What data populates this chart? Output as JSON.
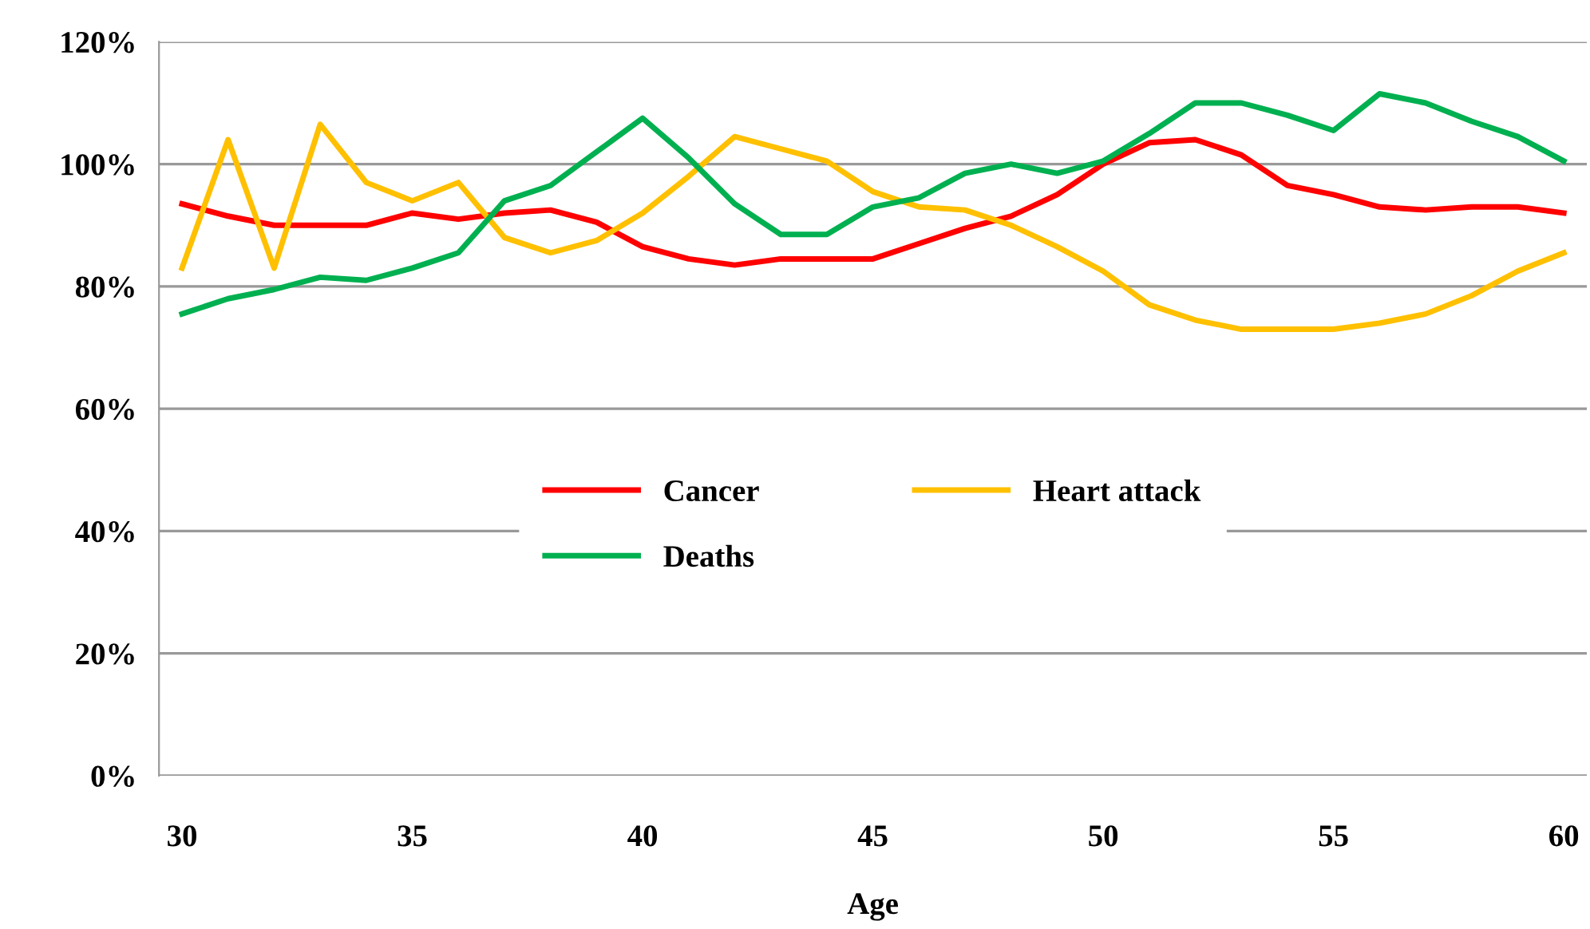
{
  "chart_data": {
    "type": "line",
    "xlabel": "Age",
    "x": [
      30,
      31,
      32,
      33,
      34,
      35,
      36,
      37,
      38,
      39,
      40,
      41,
      42,
      43,
      44,
      45,
      46,
      47,
      48,
      49,
      50,
      51,
      52,
      53,
      54,
      55,
      56,
      57,
      58,
      59,
      60
    ],
    "series": [
      {
        "name": "Cancer",
        "color": "#ff0000",
        "values": [
          93.5,
          91.5,
          90,
          90,
          90,
          92,
          91,
          92,
          92.5,
          90.5,
          86.5,
          84.5,
          83.5,
          84.5,
          84.5,
          84.5,
          87,
          89.5,
          91.5,
          95,
          100,
          103.5,
          104,
          101.5,
          96.5,
          95,
          93,
          92.5,
          93,
          93,
          92
        ]
      },
      {
        "name": "Heart attack",
        "color": "#ffc000",
        "values": [
          83,
          104,
          83,
          106.5,
          97,
          94,
          97,
          88,
          85.5,
          87.5,
          92,
          98,
          104.5,
          102.5,
          100.5,
          95.5,
          93,
          92.5,
          90,
          86.5,
          82.5,
          77,
          74.5,
          73,
          73,
          73,
          74,
          75.5,
          78.5,
          82.5,
          85.5
        ]
      },
      {
        "name": "Deaths",
        "color": "#00b050",
        "values": [
          75.5,
          78,
          79.5,
          81.5,
          81,
          83,
          85.5,
          94,
          96.5,
          102,
          107.5,
          101,
          93.5,
          88.5,
          88.5,
          93,
          94.5,
          98.5,
          100,
          98.5,
          100.5,
          105,
          110,
          110,
          108,
          105.5,
          111.5,
          110,
          107,
          104.5,
          100.5
        ]
      }
    ],
    "xlim": [
      29.5,
      60.5
    ],
    "xticks": [
      30,
      35,
      40,
      45,
      50,
      55,
      60
    ],
    "ylim": [
      0,
      120
    ],
    "yticks": [
      {
        "value": 0,
        "label": "0%"
      },
      {
        "value": 20,
        "label": "20%"
      },
      {
        "value": 40,
        "label": "40%"
      },
      {
        "value": 60,
        "label": "60%"
      },
      {
        "value": 80,
        "label": "80%"
      },
      {
        "value": 100,
        "label": "100%"
      },
      {
        "value": 120,
        "label": "120%"
      }
    ],
    "grid": "y",
    "legend": "center",
    "marker": "none",
    "line_style": "solid"
  }
}
